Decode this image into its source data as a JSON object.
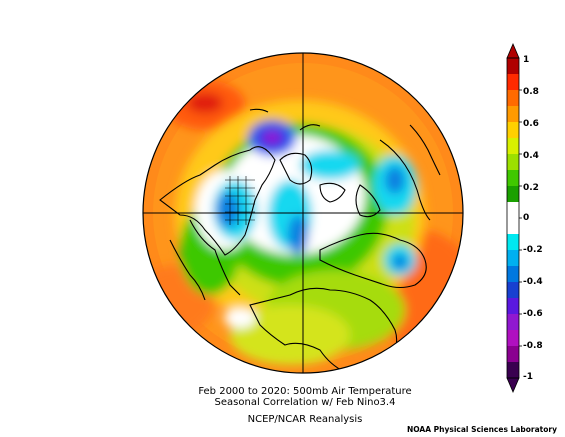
{
  "map": {
    "projection": "north-polar-stereographic",
    "title_line1": "Feb 2000 to 2020: 500mb Air Temperature",
    "title_line2": "Seasonal Correlation w/ Feb Nino3.4",
    "subtitle": "NCEP/NCAR Reanalysis",
    "credit": "NOAA Physical Sciences Laboratory"
  },
  "colorbar": {
    "labels": [
      "1",
      "0.8",
      "0.6",
      "0.4",
      "0.2",
      "0",
      "-0.2",
      "-0.4",
      "-0.6",
      "-0.8",
      "-1"
    ],
    "colors": [
      "#b00000",
      "#ff2a00",
      "#ff6a00",
      "#ff9a00",
      "#ffd000",
      "#d8f000",
      "#9ce000",
      "#40c800",
      "#1aa000",
      "#ffffff",
      "#ffffff",
      "#00e8f0",
      "#00b0f0",
      "#0078e0",
      "#1840d0",
      "#5a18e0",
      "#9018d0",
      "#b010c0",
      "#8a0090",
      "#3a0050"
    ]
  }
}
